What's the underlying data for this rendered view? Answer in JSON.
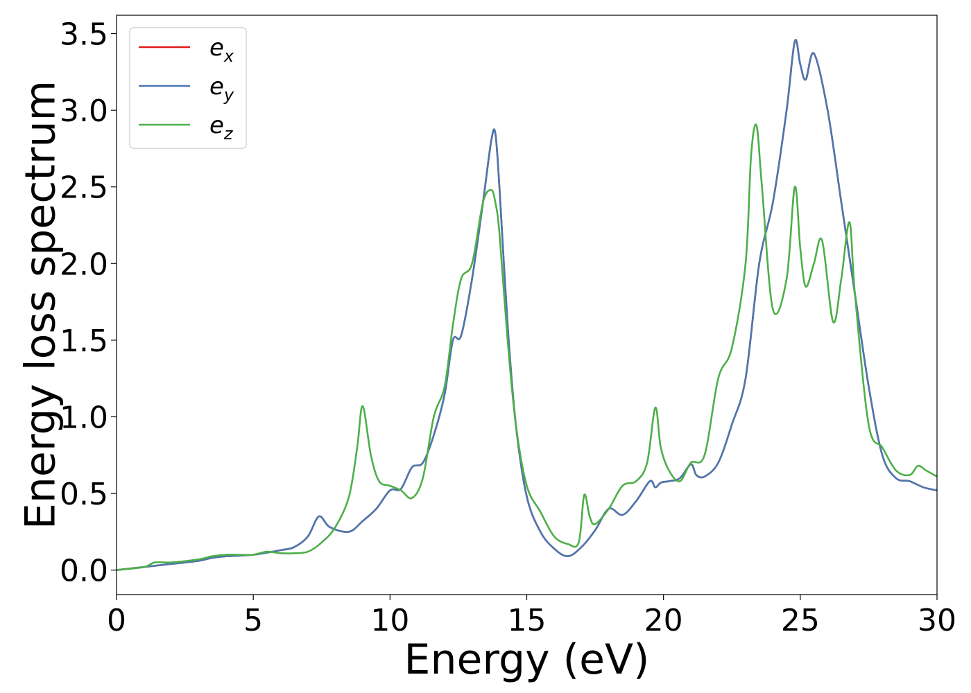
{
  "chart_data": {
    "type": "line",
    "xlabel": "Energy (eV)",
    "ylabel": "Energy loss spectrum",
    "xlim": [
      0,
      30
    ],
    "ylim": [
      -0.16,
      3.62
    ],
    "xticks": [
      0,
      5,
      10,
      15,
      20,
      25,
      30
    ],
    "xtick_labels": [
      "0",
      "5",
      "10",
      "15",
      "20",
      "25",
      "30"
    ],
    "yticks": [
      0.0,
      0.5,
      1.0,
      1.5,
      2.0,
      2.5,
      3.0,
      3.5
    ],
    "ytick_labels": [
      "0.0",
      "0.5",
      "1.0",
      "1.5",
      "2.0",
      "2.5",
      "3.0",
      "3.5"
    ],
    "grid": false,
    "legend_position": "upper-left",
    "series": [
      {
        "name": "e_x",
        "label_base": "e",
        "label_sub": "x",
        "color": "#e41a1c",
        "x": [
          0,
          1,
          2,
          3,
          3.5,
          4,
          5,
          6,
          6.5,
          7,
          7.4,
          7.8,
          8.5,
          9,
          9.5,
          10,
          10.4,
          10.8,
          11.2,
          11.6,
          12,
          12.3,
          12.6,
          13,
          13.4,
          13.7,
          13.85,
          14,
          14.3,
          14.6,
          15,
          15.5,
          16,
          16.5,
          17,
          17.5,
          18,
          18.5,
          19,
          19.5,
          19.7,
          19.9,
          20.2,
          20.6,
          21,
          21.2,
          21.5,
          22,
          22.5,
          23,
          23.5,
          24,
          24.5,
          24.8,
          25,
          25.2,
          25.5,
          26,
          26.5,
          27,
          27.5,
          28,
          28.5,
          29,
          29.5,
          30
        ],
        "y": [
          0.0,
          0.02,
          0.04,
          0.06,
          0.08,
          0.09,
          0.1,
          0.13,
          0.15,
          0.22,
          0.35,
          0.28,
          0.25,
          0.32,
          0.4,
          0.52,
          0.53,
          0.67,
          0.7,
          0.88,
          1.15,
          1.5,
          1.53,
          1.9,
          2.4,
          2.8,
          2.85,
          2.5,
          1.6,
          0.95,
          0.48,
          0.25,
          0.14,
          0.09,
          0.15,
          0.26,
          0.4,
          0.36,
          0.45,
          0.58,
          0.54,
          0.57,
          0.58,
          0.6,
          0.69,
          0.62,
          0.61,
          0.7,
          0.95,
          1.25,
          2.0,
          2.4,
          3.0,
          3.45,
          3.3,
          3.2,
          3.37,
          3.0,
          2.4,
          1.8,
          1.2,
          0.75,
          0.6,
          0.58,
          0.54,
          0.52
        ]
      },
      {
        "name": "e_y",
        "label_base": "e",
        "label_sub": "y",
        "color": "#4a78b0",
        "x": [
          0,
          1,
          2,
          3,
          3.5,
          4,
          5,
          6,
          6.5,
          7,
          7.4,
          7.8,
          8.5,
          9,
          9.5,
          10,
          10.4,
          10.8,
          11.2,
          11.6,
          12,
          12.3,
          12.6,
          13,
          13.4,
          13.7,
          13.85,
          14,
          14.3,
          14.6,
          15,
          15.5,
          16,
          16.5,
          17,
          17.5,
          18,
          18.5,
          19,
          19.5,
          19.7,
          19.9,
          20.2,
          20.6,
          21,
          21.2,
          21.5,
          22,
          22.5,
          23,
          23.5,
          24,
          24.5,
          24.8,
          25,
          25.2,
          25.5,
          26,
          26.5,
          27,
          27.5,
          28,
          28.5,
          29,
          29.5,
          30
        ],
        "y": [
          0.0,
          0.02,
          0.04,
          0.06,
          0.08,
          0.09,
          0.1,
          0.13,
          0.15,
          0.22,
          0.35,
          0.28,
          0.25,
          0.32,
          0.4,
          0.52,
          0.53,
          0.67,
          0.7,
          0.88,
          1.15,
          1.5,
          1.53,
          1.9,
          2.4,
          2.8,
          2.85,
          2.5,
          1.6,
          0.95,
          0.48,
          0.25,
          0.14,
          0.09,
          0.15,
          0.26,
          0.4,
          0.36,
          0.45,
          0.58,
          0.54,
          0.57,
          0.58,
          0.6,
          0.69,
          0.62,
          0.61,
          0.7,
          0.95,
          1.25,
          2.0,
          2.4,
          3.0,
          3.45,
          3.3,
          3.2,
          3.37,
          3.0,
          2.4,
          1.8,
          1.2,
          0.75,
          0.6,
          0.58,
          0.54,
          0.52
        ]
      },
      {
        "name": "e_z",
        "label_base": "e",
        "label_sub": "z",
        "color": "#4daf4a",
        "x": [
          0,
          1,
          1.4,
          2,
          3,
          3.5,
          4,
          4.5,
          5,
          5.5,
          6,
          6.5,
          7,
          7.5,
          8,
          8.5,
          8.8,
          9,
          9.3,
          9.6,
          10,
          10.4,
          10.8,
          11.2,
          11.6,
          12,
          12.3,
          12.6,
          13,
          13.4,
          13.7,
          13.85,
          14,
          14.3,
          14.6,
          15,
          15.5,
          16,
          16.5,
          16.9,
          17.1,
          17.3,
          17.5,
          18,
          18.5,
          19,
          19.4,
          19.7,
          19.9,
          20.2,
          20.6,
          21,
          21.5,
          22,
          22.5,
          23,
          23.2,
          23.4,
          23.6,
          24,
          24.5,
          24.8,
          25,
          25.2,
          25.5,
          25.8,
          26.2,
          26.5,
          26.8,
          27,
          27.5,
          28,
          28.5,
          29,
          29.3,
          29.6,
          30
        ],
        "y": [
          0.0,
          0.02,
          0.05,
          0.05,
          0.07,
          0.09,
          0.1,
          0.1,
          0.1,
          0.12,
          0.11,
          0.11,
          0.12,
          0.18,
          0.28,
          0.48,
          0.8,
          1.07,
          0.75,
          0.58,
          0.55,
          0.52,
          0.47,
          0.6,
          1.0,
          1.2,
          1.6,
          1.9,
          2.0,
          2.4,
          2.48,
          2.4,
          2.2,
          1.5,
          0.95,
          0.55,
          0.38,
          0.22,
          0.17,
          0.18,
          0.49,
          0.35,
          0.3,
          0.4,
          0.55,
          0.58,
          0.7,
          1.06,
          0.8,
          0.65,
          0.58,
          0.7,
          0.75,
          1.25,
          1.45,
          2.0,
          2.7,
          2.9,
          2.5,
          1.7,
          1.9,
          2.5,
          2.1,
          1.85,
          2.0,
          2.15,
          1.62,
          1.9,
          2.27,
          1.8,
          0.95,
          0.8,
          0.65,
          0.62,
          0.68,
          0.65,
          0.61
        ]
      }
    ]
  }
}
